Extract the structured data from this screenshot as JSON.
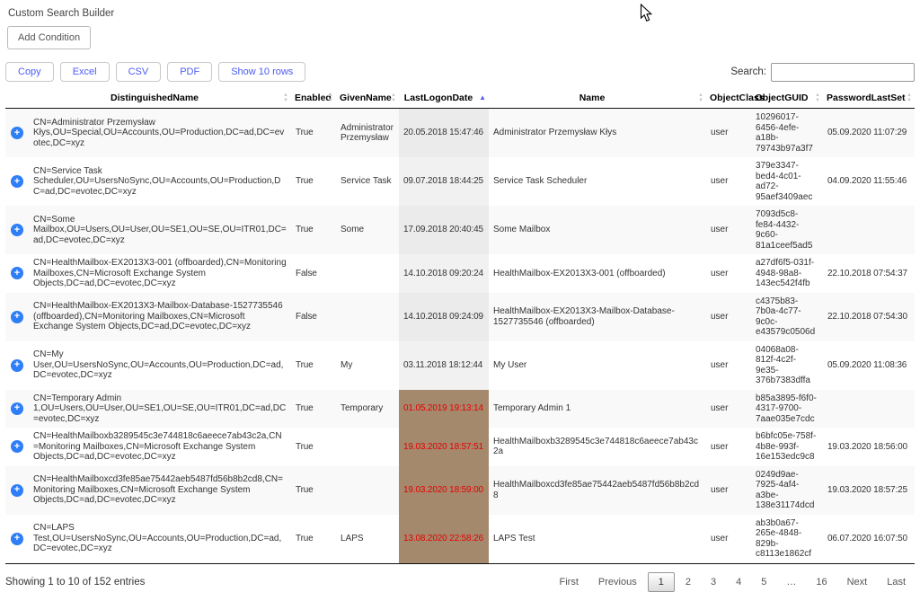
{
  "page": {
    "title": "Custom Search Builder"
  },
  "builder": {
    "add_condition_label": "Add Condition"
  },
  "toolbar": {
    "buttons": [
      {
        "id": "copy",
        "label": "Copy"
      },
      {
        "id": "excel",
        "label": "Excel"
      },
      {
        "id": "csv",
        "label": "CSV"
      },
      {
        "id": "pdf",
        "label": "PDF"
      },
      {
        "id": "show-rows",
        "label": "Show 10 rows"
      }
    ],
    "search_label": "Search:",
    "search_value": ""
  },
  "table": {
    "expand_icon": "+",
    "columns": [
      {
        "key": "dn",
        "label": "DistinguishedName",
        "sort": "both"
      },
      {
        "key": "enabled",
        "label": "Enabled",
        "sort": "both"
      },
      {
        "key": "given_name",
        "label": "GivenName",
        "sort": "both"
      },
      {
        "key": "last_logon_date",
        "label": "LastLogonDate",
        "sort": "asc"
      },
      {
        "key": "name",
        "label": "Name",
        "sort": "both"
      },
      {
        "key": "object_class",
        "label": "ObjectClass",
        "sort": "both"
      },
      {
        "key": "object_guid",
        "label": "ObjectGUID",
        "sort": "both"
      },
      {
        "key": "password_last_set",
        "label": "PasswordLastSet",
        "sort": "both"
      }
    ],
    "rows": [
      {
        "dn": "CN=Administrator Przemysław Kłys,OU=Special,OU=Accounts,OU=Production,DC=ad,DC=evotec,DC=xyz",
        "enabled": "True",
        "given_name": "Administrator Przemysław",
        "last_logon_date": "20.05.2018 15:47:46",
        "highlight": false,
        "name": "Administrator Przemysław Kłys",
        "object_class": "user",
        "object_guid": "10296017-6456-4efe-a18b-79743b97a3f7",
        "password_last_set": "05.09.2020 11:07:29"
      },
      {
        "dn": "CN=Service Task Scheduler,OU=UsersNoSync,OU=Accounts,OU=Production,DC=ad,DC=evotec,DC=xyz",
        "enabled": "True",
        "given_name": "Service Task",
        "last_logon_date": "09.07.2018 18:44:25",
        "highlight": false,
        "name": "Service Task Scheduler",
        "object_class": "user",
        "object_guid": "379e3347-bed4-4c01-ad72-95aef3409aec",
        "password_last_set": "04.09.2020 11:55:46"
      },
      {
        "dn": "CN=Some Mailbox,OU=Users,OU=User,OU=SE1,OU=SE,OU=ITR01,DC=ad,DC=evotec,DC=xyz",
        "enabled": "True",
        "given_name": "Some",
        "last_logon_date": "17.09.2018 20:40:45",
        "highlight": false,
        "name": "Some Mailbox",
        "object_class": "user",
        "object_guid": "7093d5c8-fe84-4432-9c60-81a1ceef5ad5",
        "password_last_set": ""
      },
      {
        "dn": "CN=HealthMailbox-EX2013X3-001 (offboarded),CN=Monitoring Mailboxes,CN=Microsoft Exchange System Objects,DC=ad,DC=evotec,DC=xyz",
        "enabled": "False",
        "given_name": "",
        "last_logon_date": "14.10.2018 09:20:24",
        "highlight": false,
        "name": "HealthMailbox-EX2013X3-001 (offboarded)",
        "object_class": "user",
        "object_guid": "a27df6f5-031f-4948-98a8-143ec542f4fb",
        "password_last_set": "22.10.2018 07:54:37"
      },
      {
        "dn": "CN=HealthMailbox-EX2013X3-Mailbox-Database-1527735546 (offboarded),CN=Monitoring Mailboxes,CN=Microsoft Exchange System Objects,DC=ad,DC=evotec,DC=xyz",
        "enabled": "False",
        "given_name": "",
        "last_logon_date": "14.10.2018 09:24:09",
        "highlight": false,
        "name": "HealthMailbox-EX2013X3-Mailbox-Database-1527735546 (offboarded)",
        "object_class": "user",
        "object_guid": "c4375b83-7b0a-4c77-9c0c-e43579c0506d",
        "password_last_set": "22.10.2018 07:54:30"
      },
      {
        "dn": "CN=My User,OU=UsersNoSync,OU=Accounts,OU=Production,DC=ad,DC=evotec,DC=xyz",
        "enabled": "True",
        "given_name": "My",
        "last_logon_date": "03.11.2018 18:12:44",
        "highlight": false,
        "name": "My User",
        "object_class": "user",
        "object_guid": "04068a08-812f-4c2f-9e35-376b7383dffa",
        "password_last_set": "05.09.2020 11:08:36"
      },
      {
        "dn": "CN=Temporary Admin 1,OU=Users,OU=User,OU=SE1,OU=SE,OU=ITR01,DC=ad,DC=evotec,DC=xyz",
        "enabled": "True",
        "given_name": "Temporary",
        "last_logon_date": "01.05.2019 19:13:14",
        "highlight": true,
        "name": "Temporary Admin 1",
        "object_class": "user",
        "object_guid": "b85a3895-f6f0-4317-9700-7aae035e7cdc",
        "password_last_set": ""
      },
      {
        "dn": "CN=HealthMailboxb3289545c3e744818c6aeece7ab43c2a,CN=Monitoring Mailboxes,CN=Microsoft Exchange System Objects,DC=ad,DC=evotec,DC=xyz",
        "enabled": "True",
        "given_name": "",
        "last_logon_date": "19.03.2020 18:57:51",
        "highlight": true,
        "name": "HealthMailboxb3289545c3e744818c6aeece7ab43c2a",
        "object_class": "user",
        "object_guid": "b6bfc05e-758f-4b8e-993f-16e153edc9c8",
        "password_last_set": "19.03.2020 18:56:00"
      },
      {
        "dn": "CN=HealthMailboxcd3fe85ae75442aeb5487fd56b8b2cd8,CN=Monitoring Mailboxes,CN=Microsoft Exchange System Objects,DC=ad,DC=evotec,DC=xyz",
        "enabled": "True",
        "given_name": "",
        "last_logon_date": "19.03.2020 18:59:00",
        "highlight": true,
        "name": "HealthMailboxcd3fe85ae75442aeb5487fd56b8b2cd8",
        "object_class": "user",
        "object_guid": "0249d9ae-7925-4af4-a3be-138e31174dcd",
        "password_last_set": "19.03.2020 18:57:25"
      },
      {
        "dn": "CN=LAPS Test,OU=UsersNoSync,OU=Accounts,OU=Production,DC=ad,DC=evotec,DC=xyz",
        "enabled": "True",
        "given_name": "LAPS",
        "last_logon_date": "13.08.2020 22:58:26",
        "highlight": true,
        "name": "LAPS Test",
        "object_class": "user",
        "object_guid": "ab3b0a67-265e-4848-829b-c8113e1862cf",
        "password_last_set": "06.07.2020 16:07:50"
      }
    ]
  },
  "footer": {
    "info": "Showing 1 to 10 of 152 entries",
    "pagination": {
      "first": "First",
      "previous": "Previous",
      "pages": [
        "1",
        "2",
        "3",
        "4",
        "5",
        "…",
        "16"
      ],
      "active_page": "1",
      "next": "Next",
      "last": "Last"
    }
  },
  "colors": {
    "button_text": "#4d5bf3",
    "expand_button": "#2d7ef7",
    "sort_active": "#5a5af0",
    "highlight_bg": "#a5896d",
    "highlight_text": "#e60000"
  }
}
